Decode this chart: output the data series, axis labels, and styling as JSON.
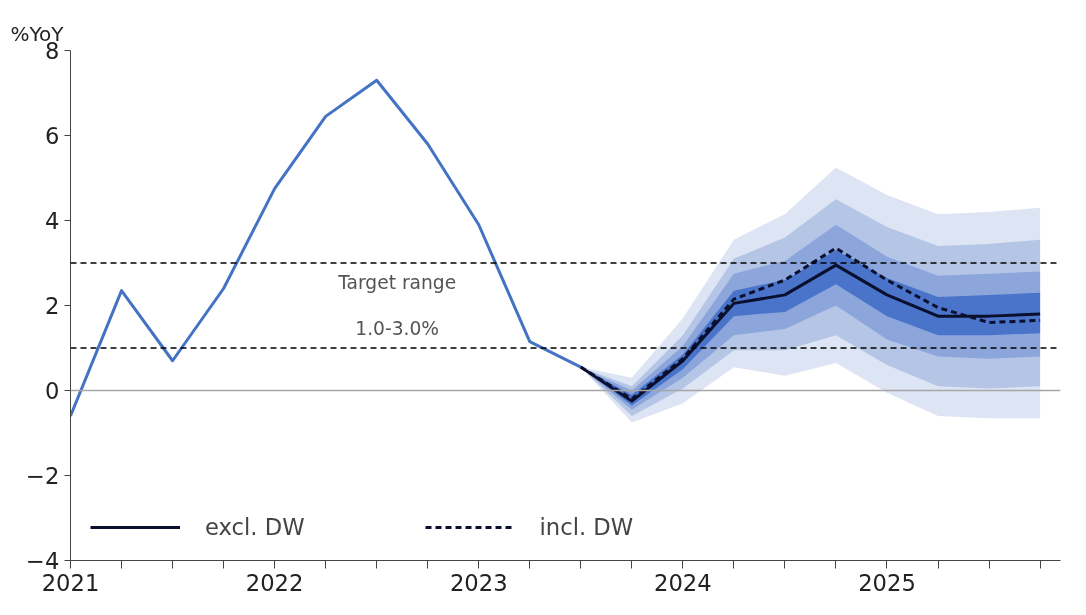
{
  "chart_data": {
    "type": "line",
    "ylabel": "%YoY",
    "x": [
      2021,
      2021.25,
      2021.5,
      2021.75,
      2022,
      2022.25,
      2022.5,
      2022.75,
      2023,
      2023.25,
      2023.5
    ],
    "series": [
      {
        "type": "area",
        "color": "#dde4f3",
        "x": [
          2023.5,
          2023.75,
          2024,
          2024.25,
          2024.5,
          2024.75,
          2025,
          2025.25,
          2025.5,
          2025.75
        ],
        "values": [
          null,
          null,
          null,
          null,
          null,
          null,
          null,
          null,
          null,
          null
        ],
        "upper": [
          0.55,
          0.3,
          1.7,
          3.55,
          4.15,
          5.25,
          4.6,
          4.15,
          4.2,
          4.3
        ],
        "lower": [
          0.55,
          -0.75,
          -0.3,
          0.55,
          0.35,
          0.65,
          -0.05,
          -0.6,
          -0.65,
          -0.65
        ]
      },
      {
        "type": "area",
        "color": "#b4c5e6",
        "x": [
          2023.5,
          2023.75,
          2024,
          2024.25,
          2024.5,
          2024.75,
          2025,
          2025.25,
          2025.5,
          2025.75
        ],
        "values": [
          null,
          null,
          null,
          null,
          null,
          null,
          null,
          null,
          null,
          null
        ],
        "upper": [
          0.55,
          0.1,
          1.3,
          3.1,
          3.6,
          4.5,
          3.85,
          3.4,
          3.45,
          3.55
        ],
        "lower": [
          0.55,
          -0.6,
          0.05,
          0.95,
          0.95,
          1.3,
          0.6,
          0.1,
          0.05,
          0.1
        ]
      },
      {
        "type": "area",
        "color": "#8ca6dc",
        "x": [
          2023.5,
          2023.75,
          2024,
          2024.25,
          2024.5,
          2024.75,
          2025,
          2025.25,
          2025.5,
          2025.75
        ],
        "values": [
          null,
          null,
          null,
          null,
          null,
          null,
          null,
          null,
          null,
          null
        ],
        "upper": [
          0.55,
          0.0,
          1.05,
          2.75,
          3.05,
          3.9,
          3.15,
          2.7,
          2.75,
          2.8
        ],
        "lower": [
          0.55,
          -0.45,
          0.3,
          1.3,
          1.45,
          2.0,
          1.2,
          0.8,
          0.75,
          0.8
        ]
      },
      {
        "type": "area",
        "color": "#4a74c9",
        "x": [
          2023.5,
          2023.75,
          2024,
          2024.25,
          2024.5,
          2024.75,
          2025,
          2025.25,
          2025.5,
          2025.75
        ],
        "values": [
          null,
          null,
          null,
          null,
          null,
          null,
          null,
          null,
          null,
          null
        ],
        "upper": [
          0.55,
          -0.1,
          0.85,
          2.35,
          2.6,
          3.3,
          2.65,
          2.2,
          2.25,
          2.3
        ],
        "lower": [
          0.55,
          -0.35,
          0.5,
          1.75,
          1.85,
          2.5,
          1.75,
          1.3,
          1.3,
          1.35
        ]
      },
      {
        "color": "#4472c4",
        "values": [
          -0.6,
          2.35,
          0.7,
          2.4,
          4.75,
          6.45,
          7.3,
          5.8,
          3.9,
          1.15,
          0.55
        ]
      },
      {
        "name": "excl. DW",
        "color": "#0b0f2e",
        "line_style": "solid",
        "x": [
          2023.5,
          2023.75,
          2024,
          2024.25,
          2024.5,
          2024.75,
          2025,
          2025.25,
          2025.5,
          2025.75
        ],
        "values": [
          0.55,
          -0.25,
          0.7,
          2.05,
          2.25,
          2.95,
          2.25,
          1.75,
          1.75,
          1.8
        ]
      },
      {
        "name": "incl. DW",
        "color": "#0b0f2e",
        "line_style": "dashed",
        "x": [
          2023.5,
          2023.75,
          2024,
          2024.25,
          2024.5,
          2024.75,
          2025,
          2025.25,
          2025.5,
          2025.75
        ],
        "values": [
          0.55,
          -0.2,
          0.75,
          2.15,
          2.6,
          3.35,
          2.6,
          1.95,
          1.6,
          1.65
        ]
      }
    ],
    "xlim": [
      2021,
      2025.85
    ],
    "xticks": [
      {
        "value": 2021,
        "label": "2021"
      },
      {
        "value": 2021.25,
        "label": null
      },
      {
        "value": 2021.5,
        "label": null
      },
      {
        "value": 2021.75,
        "label": null
      },
      {
        "value": 2022,
        "label": "2022"
      },
      {
        "value": 2022.25,
        "label": null
      },
      {
        "value": 2022.5,
        "label": null
      },
      {
        "value": 2022.75,
        "label": null
      },
      {
        "value": 2023,
        "label": "2023"
      },
      {
        "value": 2023.25,
        "label": null
      },
      {
        "value": 2023.5,
        "label": null
      },
      {
        "value": 2023.75,
        "label": null
      },
      {
        "value": 2024,
        "label": "2024"
      },
      {
        "value": 2024.25,
        "label": null
      },
      {
        "value": 2024.5,
        "label": null
      },
      {
        "value": 2024.75,
        "label": null
      },
      {
        "value": 2025,
        "label": "2025"
      },
      {
        "value": 2025.25,
        "label": null
      },
      {
        "value": 2025.5,
        "label": null
      },
      {
        "value": 2025.75,
        "label": null
      }
    ],
    "ylim": [
      -4,
      8
    ],
    "yticks": [
      -4,
      -2,
      0,
      2,
      4,
      6,
      8
    ],
    "ref_lines": [
      {
        "axis": "y",
        "value": 0,
        "color": "#a6a6a6",
        "line_style": "solid"
      },
      {
        "axis": "y",
        "value": 3,
        "color": "#000000",
        "line_style": "dashed"
      },
      {
        "axis": "y",
        "value": 1,
        "color": "#000000",
        "line_style": "dashed"
      }
    ],
    "annotations": [
      "Target range",
      "1.0-3.0%"
    ],
    "legend": "bottom left",
    "grid": false
  }
}
